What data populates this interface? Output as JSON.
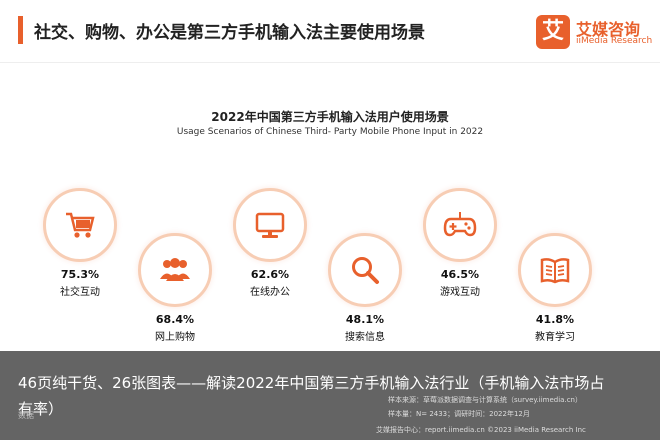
{
  "header": {
    "title": "社交、购物、办公是第三方手机输入法主要使用场景",
    "logo_mark": "艾",
    "logo_cn": "艾媒咨询",
    "logo_en": "iiMedia Research"
  },
  "chart_data": {
    "type": "icon-stat",
    "title": "2022年中国第三方手机输入法用户使用场景",
    "subtitle": "Usage Scenarios of Chinese Third- Party Mobile Phone Input in 2022",
    "items": [
      {
        "label": "社交互动",
        "value": "75.3%",
        "icon": "shopping-cart-icon"
      },
      {
        "label": "网上购物",
        "value": "68.4%",
        "icon": "users-icon"
      },
      {
        "label": "在线办公",
        "value": "62.6%",
        "icon": "monitor-icon"
      },
      {
        "label": "搜索信息",
        "value": "48.1%",
        "icon": "search-icon"
      },
      {
        "label": "游戏互动",
        "value": "46.5%",
        "icon": "gamepad-icon"
      },
      {
        "label": "教育学习",
        "value": "41.8%",
        "icon": "book-icon"
      }
    ],
    "values": [
      75.3,
      68.4,
      62.6,
      48.1,
      46.5,
      41.8
    ],
    "colors": {
      "accent": "#e8602c",
      "ring": "#f7cdb4"
    }
  },
  "overlay": {
    "text": "46页纯干货、26张图表——解读2022年中国第三方手机输入法行业（手机输入法市场占有率）"
  },
  "source": {
    "line1": "样本来源：草莓派数据调查与计算系统（survey.iimedia.cn）",
    "line2": "样本量：N= 2433；调研时间：2022年12月",
    "footer": "艾媒报告中心：report.iimedia.cn   ©2023  iiMedia Research  Inc",
    "left": "数据"
  }
}
